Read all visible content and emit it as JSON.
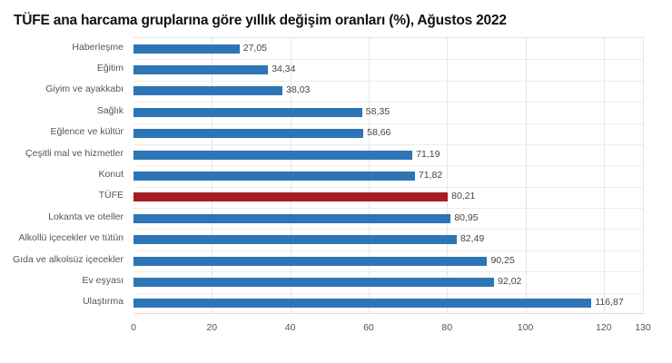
{
  "title": "TÜFE ana harcama gruplarına göre yıllık değişim oranları (%), Ağustos 2022",
  "colors": {
    "default_bar": "#2e75b6",
    "highlight_bar": "#a61c24"
  },
  "chart_data": {
    "type": "bar",
    "orientation": "horizontal",
    "title": "TÜFE ana harcama gruplarına göre yıllık değişim oranları (%), Ağustos 2022",
    "xlabel": "",
    "ylabel": "",
    "xlim": [
      0,
      130
    ],
    "xticks": [
      "0",
      "20",
      "40",
      "60",
      "80",
      "100",
      "120",
      "130"
    ],
    "grid": true,
    "legend": "none",
    "categories": [
      "Haberleşme",
      "Eğitim",
      "Giyim ve ayakkabı",
      "Sağlık",
      "Eğlence ve kültür",
      "Çeşitli mal ve hizmetler",
      "Konut",
      "TÜFE",
      "Lokanta ve oteller",
      "Alkollü içecekler ve tütün",
      "Gıda ve alkolsüz içecekler",
      "Ev eşyası",
      "Ulaştırma"
    ],
    "values": [
      27.05,
      34.34,
      38.03,
      58.35,
      58.66,
      71.19,
      71.82,
      80.21,
      80.95,
      82.49,
      90.25,
      92.02,
      116.87
    ],
    "value_labels": [
      "27,05",
      "34,34",
      "38,03",
      "58,35",
      "58,66",
      "71,19",
      "71,82",
      "80,21",
      "80,95",
      "82,49",
      "90,25",
      "92,02",
      "116,87"
    ],
    "highlight": "TÜFE"
  }
}
